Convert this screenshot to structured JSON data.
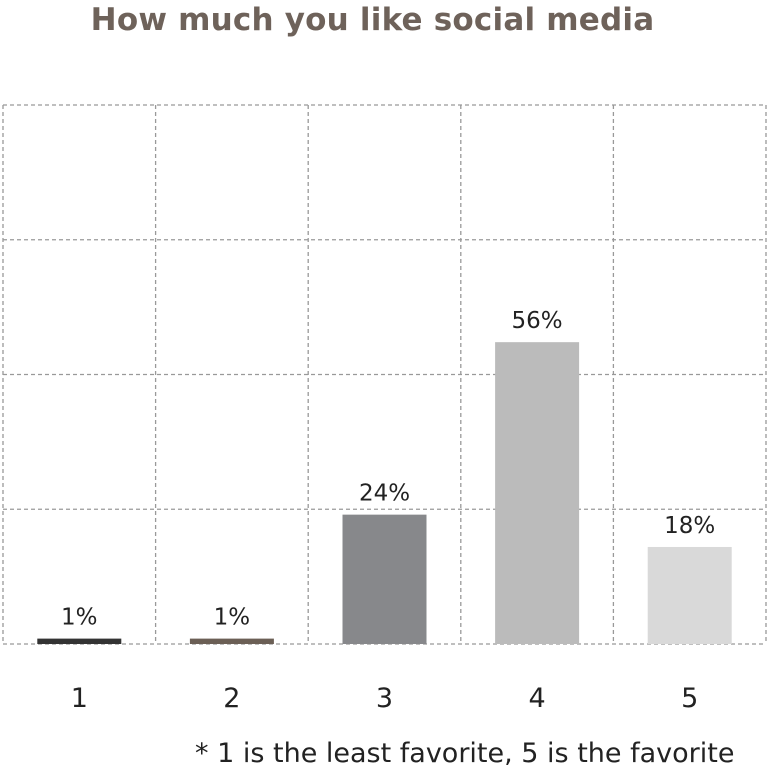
{
  "chart_data": {
    "type": "bar",
    "title": "How much you like social media",
    "xlabel": "",
    "ylabel": "",
    "categories": [
      "1",
      "2",
      "3",
      "4",
      "5"
    ],
    "values": [
      1,
      1,
      24,
      56,
      18
    ],
    "value_labels": [
      "1%",
      "1%",
      "24%",
      "56%",
      "18%"
    ],
    "bar_colors": [
      "#333333",
      "#6b5f55",
      "#87888b",
      "#bbbbbb",
      "#d9d9d9"
    ],
    "ylim": [
      0,
      100
    ],
    "grid": true,
    "legend": "none",
    "footnote": "* 1 is the least favorite, 5 is the favorite"
  },
  "colors": {
    "title": "#6e625a",
    "grid": "#999999",
    "label_text": "#222222"
  }
}
